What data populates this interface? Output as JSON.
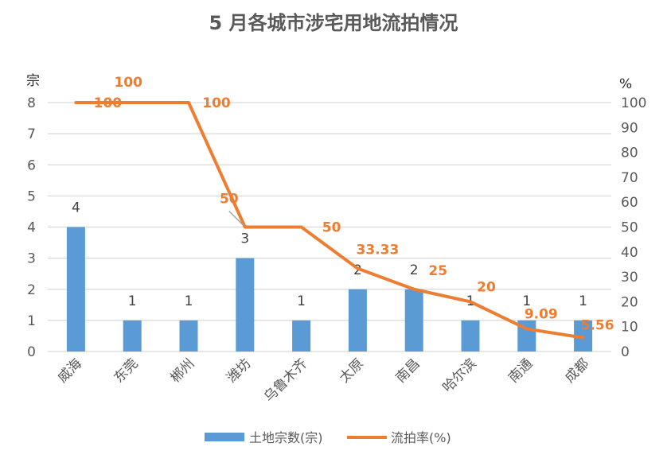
{
  "chart_data": {
    "type": "bar+line",
    "title": "5 月各城市涉宅用地流拍情况",
    "categories": [
      "威海",
      "东莞",
      "郴州",
      "潍坊",
      "乌鲁木齐",
      "太原",
      "南昌",
      "哈尔滨",
      "南通",
      "成都"
    ],
    "series": [
      {
        "name": "土地宗数(宗)",
        "type": "bar",
        "axis": "left",
        "color": "#5B9BD5",
        "values": [
          4,
          1,
          1,
          3,
          1,
          2,
          2,
          1,
          1,
          1
        ],
        "labels": [
          "4",
          "1",
          "1",
          "3",
          "1",
          "2",
          "2",
          "1",
          "1",
          "1"
        ]
      },
      {
        "name": "流拍率(%)",
        "type": "line",
        "axis": "right",
        "color": "#ED7D31",
        "values": [
          100,
          100,
          100,
          50,
          50,
          33.33,
          25,
          20,
          9.09,
          5.56
        ],
        "labels": [
          "100",
          "100",
          "100",
          "50",
          "50",
          "33.33",
          "25",
          "20",
          "9.09",
          "5.56"
        ]
      }
    ],
    "y_left": {
      "unit": "宗",
      "min": 0,
      "max": 8,
      "ticks": [
        "0",
        "1",
        "2",
        "3",
        "4",
        "5",
        "6",
        "7",
        "8"
      ]
    },
    "y_right": {
      "unit": "%",
      "min": 0,
      "max": 100,
      "ticks": [
        "0",
        "10",
        "20",
        "30",
        "40",
        "50",
        "60",
        "70",
        "80",
        "90",
        "100"
      ]
    },
    "grid": true,
    "legend_position": "bottom"
  }
}
